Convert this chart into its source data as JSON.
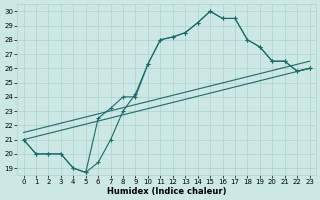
{
  "bg_color": "#cce8e4",
  "grid_color": "#b0d0cc",
  "line_color": "#1a6b6b",
  "xlabel": "Humidex (Indice chaleur)",
  "xlim": [
    -0.5,
    23.5
  ],
  "ylim": [
    18.5,
    30.5
  ],
  "xticks": [
    0,
    1,
    2,
    3,
    4,
    5,
    6,
    7,
    8,
    9,
    10,
    11,
    12,
    13,
    14,
    15,
    16,
    17,
    18,
    19,
    20,
    21,
    22,
    23
  ],
  "yticks": [
    19,
    20,
    21,
    22,
    23,
    24,
    25,
    26,
    27,
    28,
    29,
    30
  ],
  "line1_x": [
    0,
    1,
    2,
    3,
    4,
    5,
    6,
    7,
    8,
    9,
    10,
    11,
    12,
    13,
    14,
    15,
    16,
    17,
    18,
    19,
    20,
    21,
    22,
    23
  ],
  "line1_y": [
    21.0,
    20.0,
    20.0,
    20.0,
    19.0,
    18.7,
    19.4,
    21.0,
    23.0,
    24.2,
    26.3,
    28.0,
    28.2,
    28.5,
    29.2,
    30.0,
    29.5,
    29.5,
    28.0,
    27.5,
    26.5,
    26.5,
    25.8,
    26.0
  ],
  "line2_x": [
    0,
    1,
    2,
    3,
    4,
    5,
    6,
    7,
    8,
    9,
    10,
    11,
    12,
    13,
    14,
    15,
    16,
    17,
    18,
    19,
    20,
    21,
    22,
    23
  ],
  "line2_y": [
    21.0,
    20.0,
    20.0,
    20.0,
    19.0,
    18.7,
    22.5,
    23.2,
    24.0,
    24.0,
    26.3,
    28.0,
    28.2,
    28.5,
    29.2,
    30.0,
    29.5,
    29.5,
    28.0,
    27.5,
    26.5,
    26.5,
    25.8,
    26.0
  ],
  "line3_x": [
    0,
    23
  ],
  "line3_y": [
    21.0,
    26.0
  ],
  "line4_x": [
    0,
    23
  ],
  "line4_y": [
    21.0,
    26.0
  ]
}
